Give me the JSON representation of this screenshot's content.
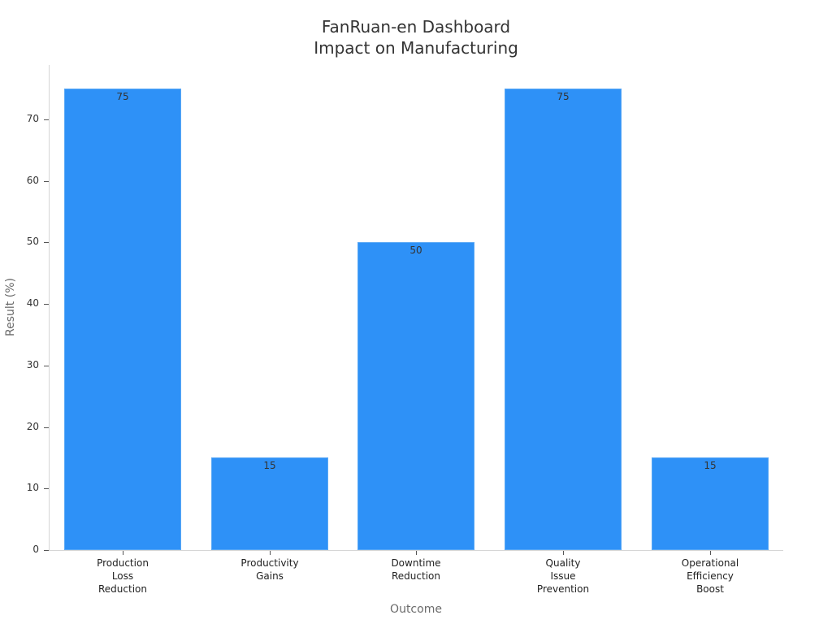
{
  "chart_data": {
    "type": "bar",
    "title": "FanRuan-en Dashboard\nImpact on Manufacturing",
    "title_lines": [
      "FanRuan-en Dashboard",
      "Impact on Manufacturing"
    ],
    "xlabel": "Outcome",
    "ylabel": "Result (%)",
    "categories": [
      "Production Loss Reduction",
      "Productivity Gains",
      "Downtime Reduction",
      "Quality Issue Prevention",
      "Operational Efficiency Boost"
    ],
    "category_labels_wrapped": [
      "Production\nLoss\nReduction",
      "Productivity\nGains",
      "Downtime\nReduction",
      "Quality\nIssue\nPrevention",
      "Operational\nEfficiency\nBoost"
    ],
    "values": [
      75,
      15,
      50,
      75,
      15
    ],
    "value_labels": [
      "75",
      "15",
      "50",
      "75",
      "15"
    ],
    "yticks": [
      "0",
      "10",
      "20",
      "30",
      "40",
      "50",
      "60",
      "70"
    ],
    "ylim": [
      0,
      79
    ],
    "grid": false,
    "legend": null,
    "colors": {
      "bar": "#2e91f7",
      "bar_edge": "#5aa8f5",
      "axis": "#d6d6d6",
      "text": "#333333",
      "axis_title": "#6b6b6b"
    }
  }
}
